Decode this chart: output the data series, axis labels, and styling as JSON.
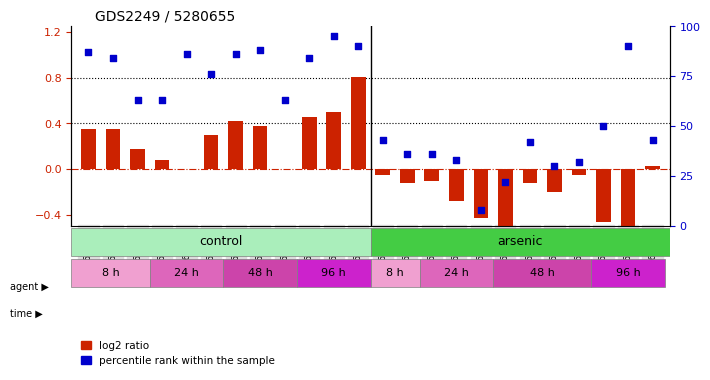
{
  "title": "GDS2249 / 5280655",
  "samples": [
    "GSM67029",
    "GSM67030",
    "GSM67031",
    "GSM67023",
    "GSM67024",
    "GSM67025",
    "GSM67026",
    "GSM67027",
    "GSM67028",
    "GSM67032",
    "GSM67033",
    "GSM67034",
    "GSM67017",
    "GSM67018",
    "GSM67019",
    "GSM67011",
    "GSM67012",
    "GSM67013",
    "GSM67014",
    "GSM67015",
    "GSM67016",
    "GSM67020",
    "GSM67021",
    "GSM67022"
  ],
  "log2_ratio": [
    0.35,
    0.35,
    0.18,
    0.08,
    0.0,
    0.3,
    0.42,
    0.38,
    0.0,
    0.46,
    0.5,
    0.81,
    -0.05,
    -0.12,
    -0.1,
    -0.28,
    -0.43,
    -0.52,
    -0.12,
    -0.2,
    -0.05,
    -0.46,
    -0.5,
    0.03
  ],
  "percentile": [
    87,
    84,
    63,
    63,
    86,
    76,
    86,
    88,
    63,
    84,
    95,
    90,
    43,
    36,
    36,
    33,
    8,
    22,
    42,
    30,
    32,
    50,
    90,
    43
  ],
  "ylim_left": [
    -0.5,
    1.25
  ],
  "ylim_right": [
    0,
    100
  ],
  "yticks_left": [
    -0.4,
    0.0,
    0.4,
    0.8,
    1.2
  ],
  "yticks_right": [
    0,
    25,
    50,
    75,
    100
  ],
  "bar_color": "#cc2200",
  "dot_color": "#0000cc",
  "hline_color": "#cc2200",
  "dotted_line_color": "#000000",
  "agent_control_color": "#aaeebb",
  "agent_arsenic_color": "#44cc44",
  "control_count": 12,
  "time_groups": [
    [
      0,
      3,
      "8 h"
    ],
    [
      3,
      6,
      "24 h"
    ],
    [
      6,
      9,
      "48 h"
    ],
    [
      9,
      12,
      "96 h"
    ],
    [
      12,
      14,
      "8 h"
    ],
    [
      14,
      17,
      "24 h"
    ],
    [
      17,
      21,
      "48 h"
    ],
    [
      21,
      24,
      "96 h"
    ]
  ],
  "time_colors": [
    "#f0a0d0",
    "#dd66bb",
    "#cc44aa",
    "#cc22cc",
    "#f0a0d0",
    "#dd66bb",
    "#cc44aa",
    "#cc22cc"
  ],
  "agent_label_control": "control",
  "agent_label_arsenic": "arsenic",
  "legend_bar": "log2 ratio",
  "legend_dot": "percentile rank within the sample"
}
